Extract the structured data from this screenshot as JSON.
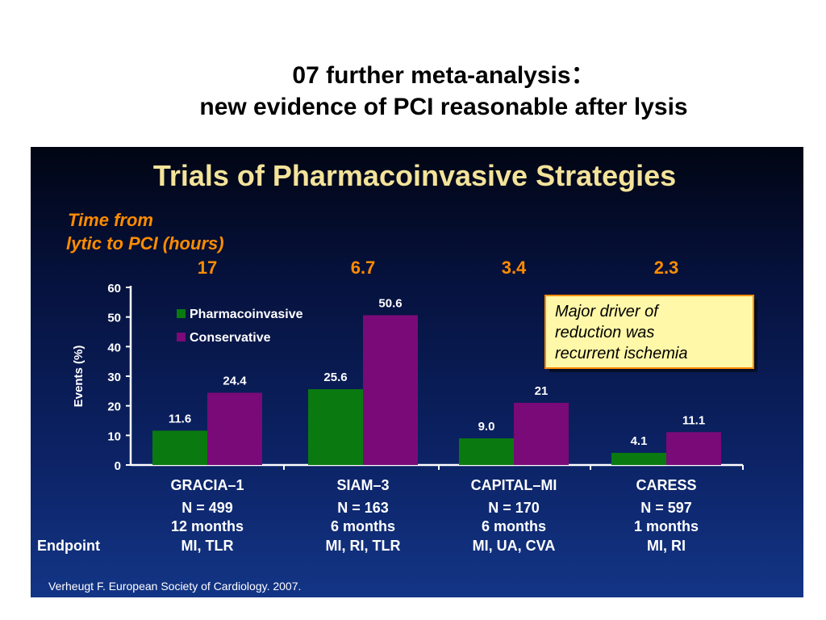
{
  "slide": {
    "title_line1": "07 further meta-analysis：",
    "title_line2": "new evidence of PCI reasonable after lysis"
  },
  "panel": {
    "heading": "Trials of Pharmacoinvasive Strategies",
    "time_label_line1": "Time from",
    "time_label_line2": "lytic to PCI (hours)",
    "callout": [
      "Major driver of",
      "reduction was",
      "recurrent ischemia"
    ],
    "endpoint_label": "Endpoint",
    "citation": "Verheugt F. European Society of Cardiology. 2007.",
    "trials": [
      {
        "name": "GRACIA–1",
        "time": "17",
        "n": "N = 499",
        "followup": "12 months",
        "endpoint": "MI, TLR"
      },
      {
        "name": "SIAM–3",
        "time": "6.7",
        "n": "N = 163",
        "followup": "6 months",
        "endpoint": "MI, RI, TLR"
      },
      {
        "name": "CAPITAL–MI",
        "time": "3.4",
        "n": "N = 170",
        "followup": "6 months",
        "endpoint": "MI, UA, CVA"
      },
      {
        "name": "CARESS",
        "time": "2.3",
        "n": "N = 597",
        "followup": "1 months",
        "endpoint": "MI, RI"
      }
    ]
  },
  "colors": {
    "pharmacoinvasive": "#0a7a10",
    "conservative": "#7a0a78",
    "heading": "#f3e39a",
    "orange": "#ff8c00",
    "callout_bg": "#fff8a8"
  },
  "chart_data": {
    "type": "bar",
    "categories": [
      "GRACIA–1",
      "SIAM–3",
      "CAPITAL–MI",
      "CARESS"
    ],
    "series": [
      {
        "name": "Pharmacoinvasive",
        "values": [
          11.6,
          25.6,
          9.0,
          4.1
        ],
        "labels": [
          "11.6",
          "25.6",
          "9.0",
          "4.1"
        ]
      },
      {
        "name": "Conservative",
        "values": [
          24.4,
          50.6,
          21,
          11.1
        ],
        "labels": [
          "24.4",
          "50.6",
          "21",
          "11.1"
        ]
      }
    ],
    "ylabel": "Events (%)",
    "ylim": [
      0,
      60
    ],
    "yticks": [
      "0",
      "10",
      "20",
      "30",
      "40",
      "50",
      "60"
    ],
    "legend": "top-left",
    "grid": false
  }
}
